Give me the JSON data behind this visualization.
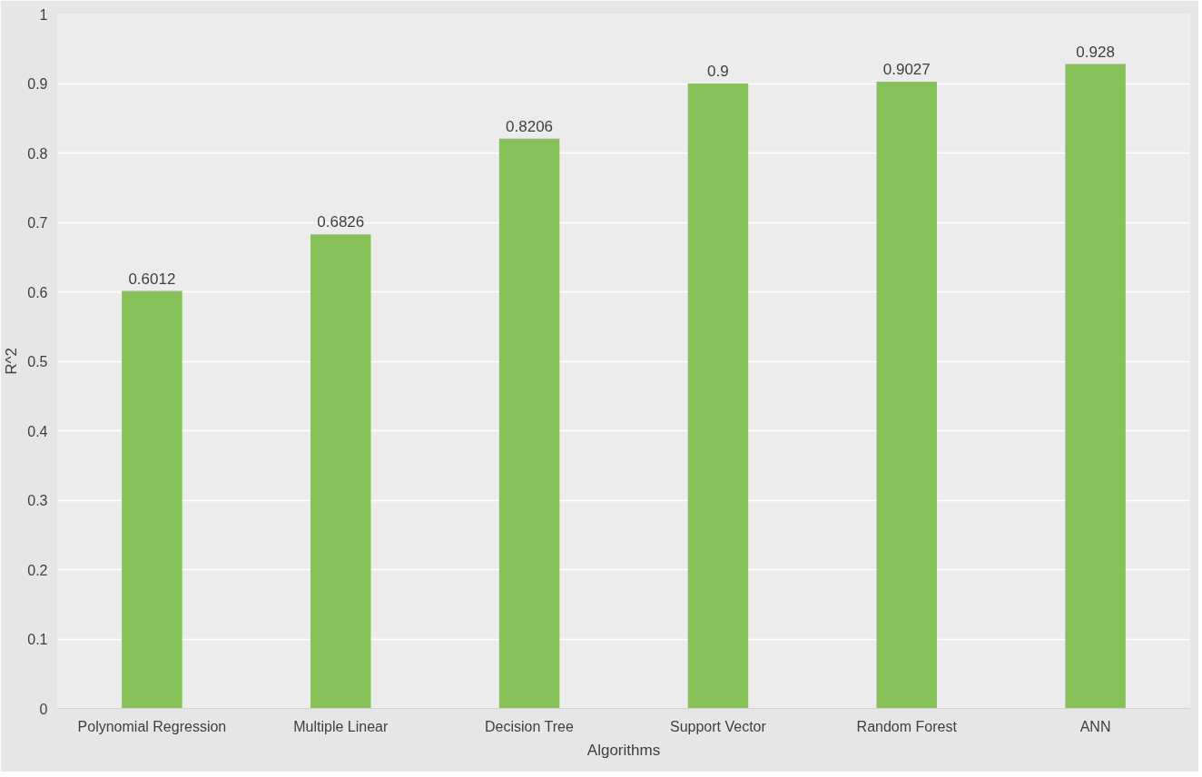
{
  "chart_data": {
    "type": "bar",
    "xlabel": "Algorithms",
    "ylabel": "R^2",
    "categories": [
      "Polynomial Regression",
      "Multiple Linear",
      "Decision Tree",
      "Support Vector",
      "Random Forest",
      "ANN"
    ],
    "values": [
      0.6012,
      0.6826,
      0.8206,
      0.9,
      0.9027,
      0.928
    ],
    "color": "#86c15a",
    "ylim": [
      0,
      1
    ],
    "yticks": [
      0,
      0.1,
      0.2,
      0.3,
      0.4,
      0.5,
      0.6,
      0.7,
      0.8,
      0.9,
      1
    ],
    "grid": "y",
    "data_labels": true
  }
}
